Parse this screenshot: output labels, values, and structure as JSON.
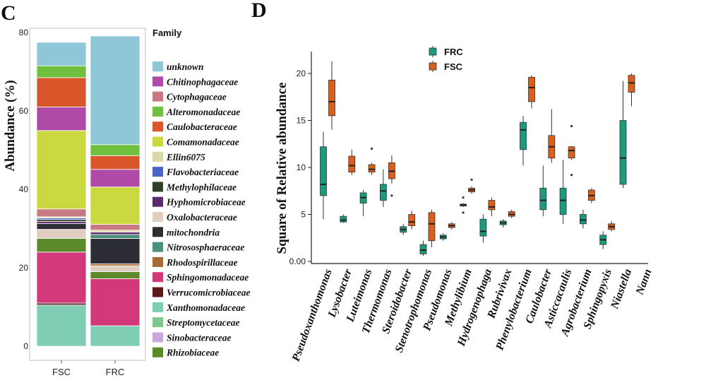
{
  "panels": {
    "c_letter": "C",
    "d_letter": "D"
  },
  "colors": {
    "frc": "#1a9b7c",
    "fsc": "#d95f1c"
  },
  "chart_data": [
    {
      "type": "bar",
      "stacked": true,
      "title": "",
      "xlabel": "",
      "ylabel": "Abundance (%)",
      "ylim": [
        0,
        80
      ],
      "yticks": [
        0,
        20,
        40,
        60,
        80
      ],
      "categories": [
        "FSC",
        "FRC"
      ],
      "legend_title": "Family",
      "series": [
        {
          "name": "Xanthomonadaceae",
          "color": "#7fcdb4",
          "values": [
            10.5,
            5.2
          ]
        },
        {
          "name": "Verrucomicrobiaceae",
          "color": "#5a1a1a",
          "values": [
            0.5,
            0.0
          ]
        },
        {
          "name": "Sphingomonadaceae",
          "color": "#d2387a",
          "values": [
            13.0,
            12.0
          ]
        },
        {
          "name": "Rhizobiaceae",
          "color": "#5c8a2a",
          "values": [
            3.5,
            1.8
          ]
        },
        {
          "name": "Oxalobacteraceae",
          "color": "#e0cfc0",
          "values": [
            2.3,
            1.5
          ]
        },
        {
          "name": "Rhodospirillaceae",
          "color": "#a86a35",
          "values": [
            0.0,
            0.5
          ]
        },
        {
          "name": "mitochondria",
          "color": "#2d2d35",
          "values": [
            1.5,
            6.5
          ]
        },
        {
          "name": "Nitrososphaeraceae",
          "color": "#4a8f80",
          "values": [
            0.0,
            1.0
          ]
        },
        {
          "name": "Hyphomicrobiaceae",
          "color": "#5a2a6a",
          "values": [
            0.5,
            0.6
          ]
        },
        {
          "name": "Methylophilaceae",
          "color": "#2e4026",
          "values": [
            0.5,
            0.0
          ]
        },
        {
          "name": "Flavobacteriaceae",
          "color": "#4a64c8",
          "values": [
            0.4,
            0.0
          ]
        },
        {
          "name": "Ellin6075",
          "color": "#d8d8a8",
          "values": [
            0.3,
            0.5
          ]
        },
        {
          "name": "Cytophagaceae",
          "color": "#c87a82",
          "values": [
            2.0,
            1.5
          ]
        },
        {
          "name": "Comamonadaceae",
          "color": "#cbd940",
          "values": [
            20.0,
            9.5
          ]
        },
        {
          "name": "Chitinophagaceae",
          "color": "#b04aa8",
          "values": [
            6.0,
            4.5
          ]
        },
        {
          "name": "Caulobacteraceae",
          "color": "#d9552a",
          "values": [
            7.5,
            3.5
          ]
        },
        {
          "name": "Alteromonadaceae",
          "color": "#70c040",
          "values": [
            3.0,
            2.8
          ]
        },
        {
          "name": "unknown",
          "color": "#8fc7d8",
          "values": [
            6.0,
            27.7
          ]
        }
      ],
      "legend_order": [
        {
          "name": "unknown",
          "color": "#8fc7d8"
        },
        {
          "name": "Chitinophagaceae",
          "color": "#b04aa8"
        },
        {
          "name": "Cytophagaceae",
          "color": "#c87a82"
        },
        {
          "name": "Alteromonadaceae",
          "color": "#70c040"
        },
        {
          "name": "Caulobacteraceae",
          "color": "#d9552a"
        },
        {
          "name": "Comamonadaceae",
          "color": "#cbd940"
        },
        {
          "name": "Ellin6075",
          "color": "#d8d8a8"
        },
        {
          "name": "Flavobacteriaceae",
          "color": "#4a64c8"
        },
        {
          "name": "Methylophilaceae",
          "color": "#2e4026"
        },
        {
          "name": "Hyphomicrobiaceae",
          "color": "#5a2a6a"
        },
        {
          "name": "Oxalobacteraceae",
          "color": "#e0cfc0"
        },
        {
          "name": "mitochondria",
          "color": "#2d2d35"
        },
        {
          "name": "Nitrososphaeraceae",
          "color": "#4a8f80"
        },
        {
          "name": "Rhodospirillaceae",
          "color": "#a86a35"
        },
        {
          "name": "Sphingomonadaceae",
          "color": "#d2387a"
        },
        {
          "name": "Verrucomicrobiaceae",
          "color": "#5a1a1a"
        },
        {
          "name": "Xanthomonadaceae",
          "color": "#7fcdb4"
        },
        {
          "name": "Streptomycetaceae",
          "color": "#7cc78c"
        },
        {
          "name": "Sinobacteraceae",
          "color": "#c8a8d8"
        },
        {
          "name": "Rhizobiaceae",
          "color": "#5c8a2a"
        }
      ]
    },
    {
      "type": "box",
      "title": "",
      "xlabel": "",
      "ylabel": "Square of Relative abundance",
      "ylim": [
        0,
        22
      ],
      "yticks": [
        "0.00",
        "5",
        "10",
        "15",
        "20"
      ],
      "yticks_values": [
        0,
        5,
        10,
        15,
        20
      ],
      "legend": [
        {
          "name": "FRC",
          "color": "#1a9b7c"
        },
        {
          "name": "FSC",
          "color": "#d95f1c"
        }
      ],
      "genera": [
        {
          "name": "Pseudoxanthomonas",
          "FRC": {
            "min": 4.5,
            "q1": 7.0,
            "med": 8.2,
            "q3": 12.2,
            "max": 13.8,
            "out": []
          },
          "FSC": {
            "min": 14.0,
            "q1": 15.5,
            "med": 17.0,
            "q3": 19.3,
            "max": 21.3,
            "out": []
          }
        },
        {
          "name": "Lysobacter",
          "FRC": {
            "min": 4.1,
            "q1": 4.2,
            "med": 4.4,
            "q3": 4.8,
            "max": 5.0,
            "out": []
          },
          "FSC": {
            "min": 9.2,
            "q1": 9.5,
            "med": 10.2,
            "q3": 11.2,
            "max": 11.9,
            "out": []
          }
        },
        {
          "name": "Luteimonas",
          "FRC": {
            "min": 4.8,
            "q1": 6.2,
            "med": 6.8,
            "q3": 7.3,
            "max": 7.6,
            "out": []
          },
          "FSC": {
            "min": 9.2,
            "q1": 9.5,
            "med": 9.8,
            "q3": 10.3,
            "max": 10.5,
            "out": [
              12.0
            ]
          }
        },
        {
          "name": "Thermomonas",
          "FRC": {
            "min": 5.8,
            "q1": 6.5,
            "med": 7.5,
            "q3": 8.2,
            "max": 9.8,
            "out": []
          },
          "FSC": {
            "min": 8.3,
            "q1": 8.8,
            "med": 9.6,
            "q3": 10.5,
            "max": 11.3,
            "out": [
              7.0
            ]
          }
        },
        {
          "name": "Steroidobacter",
          "FRC": {
            "min": 2.8,
            "q1": 3.1,
            "med": 3.4,
            "q3": 3.7,
            "max": 4.0,
            "out": []
          },
          "FSC": {
            "min": 3.4,
            "q1": 3.8,
            "med": 4.2,
            "q3": 5.0,
            "max": 5.4,
            "out": []
          }
        },
        {
          "name": "Stenotrophomonas",
          "FRC": {
            "min": 0.6,
            "q1": 0.8,
            "med": 1.2,
            "q3": 1.8,
            "max": 2.2,
            "out": []
          },
          "FSC": {
            "min": 1.5,
            "q1": 2.2,
            "med": 4.0,
            "q3": 5.2,
            "max": 5.5,
            "out": []
          }
        },
        {
          "name": "Pseudomonas",
          "FRC": {
            "min": 2.2,
            "q1": 2.4,
            "med": 2.6,
            "q3": 2.8,
            "max": 3.0,
            "out": []
          },
          "FSC": {
            "min": 3.4,
            "q1": 3.6,
            "med": 3.8,
            "q3": 4.0,
            "max": 4.2,
            "out": []
          }
        },
        {
          "name": "Methylibium",
          "FRC": {
            "min": 5.8,
            "q1": 5.9,
            "med": 6.0,
            "q3": 6.1,
            "max": 6.2,
            "out": [
              5.2,
              6.8
            ]
          },
          "FSC": {
            "min": 7.2,
            "q1": 7.4,
            "med": 7.6,
            "q3": 7.8,
            "max": 8.0,
            "out": [
              8.7
            ]
          }
        },
        {
          "name": "Hydrogenophaga",
          "FRC": {
            "min": 2.0,
            "q1": 2.7,
            "med": 3.2,
            "q3": 4.5,
            "max": 5.0,
            "out": []
          },
          "FSC": {
            "min": 4.8,
            "q1": 5.5,
            "med": 5.8,
            "q3": 6.5,
            "max": 6.8,
            "out": []
          }
        },
        {
          "name": "Rubrivivax",
          "FRC": {
            "min": 3.6,
            "q1": 3.9,
            "med": 4.1,
            "q3": 4.3,
            "max": 4.5,
            "out": []
          },
          "FSC": {
            "min": 4.6,
            "q1": 4.8,
            "med": 5.0,
            "q3": 5.3,
            "max": 5.5,
            "out": []
          }
        },
        {
          "name": "Phenylobacterium",
          "FRC": {
            "min": 10.2,
            "q1": 11.9,
            "med": 14.0,
            "q3": 14.8,
            "max": 15.5,
            "out": []
          },
          "FSC": {
            "min": 16.3,
            "q1": 17.0,
            "med": 18.5,
            "q3": 19.6,
            "max": 19.8,
            "out": []
          }
        },
        {
          "name": "Caulobacter",
          "FRC": {
            "min": 4.8,
            "q1": 5.5,
            "med": 6.5,
            "q3": 7.8,
            "max": 10.2,
            "out": []
          },
          "FSC": {
            "min": 10.5,
            "q1": 11.0,
            "med": 12.2,
            "q3": 13.4,
            "max": 16.2,
            "out": []
          }
        },
        {
          "name": "Asticcacaulis",
          "FRC": {
            "min": 4.0,
            "q1": 5.0,
            "med": 6.5,
            "q3": 7.8,
            "max": 10.8,
            "out": []
          },
          "FSC": {
            "min": 10.8,
            "q1": 11.0,
            "med": 11.8,
            "q3": 12.2,
            "max": 12.3,
            "out": [
              9.2,
              14.4
            ]
          }
        },
        {
          "name": "Agrobacterium",
          "FRC": {
            "min": 3.5,
            "q1": 4.0,
            "med": 4.4,
            "q3": 5.0,
            "max": 5.5,
            "out": []
          },
          "FSC": {
            "min": 6.2,
            "q1": 6.5,
            "med": 7.0,
            "q3": 7.6,
            "max": 7.8,
            "out": []
          }
        },
        {
          "name": "Sphingopyxis",
          "FRC": {
            "min": 1.3,
            "q1": 1.8,
            "med": 2.3,
            "q3": 2.8,
            "max": 3.2,
            "out": []
          },
          "FSC": {
            "min": 3.2,
            "q1": 3.4,
            "med": 3.7,
            "q3": 4.0,
            "max": 4.3,
            "out": []
          }
        },
        {
          "name": "Niastella",
          "FRC": {
            "min": 7.8,
            "q1": 8.2,
            "med": 11.0,
            "q3": 15.0,
            "max": 19.2,
            "out": []
          },
          "FSC": {
            "min": 16.5,
            "q1": 18.0,
            "med": 19.0,
            "q3": 19.8,
            "max": 20.0,
            "out": []
          }
        },
        {
          "name": "Nann",
          "FRC": null,
          "FSC": null
        }
      ]
    }
  ]
}
